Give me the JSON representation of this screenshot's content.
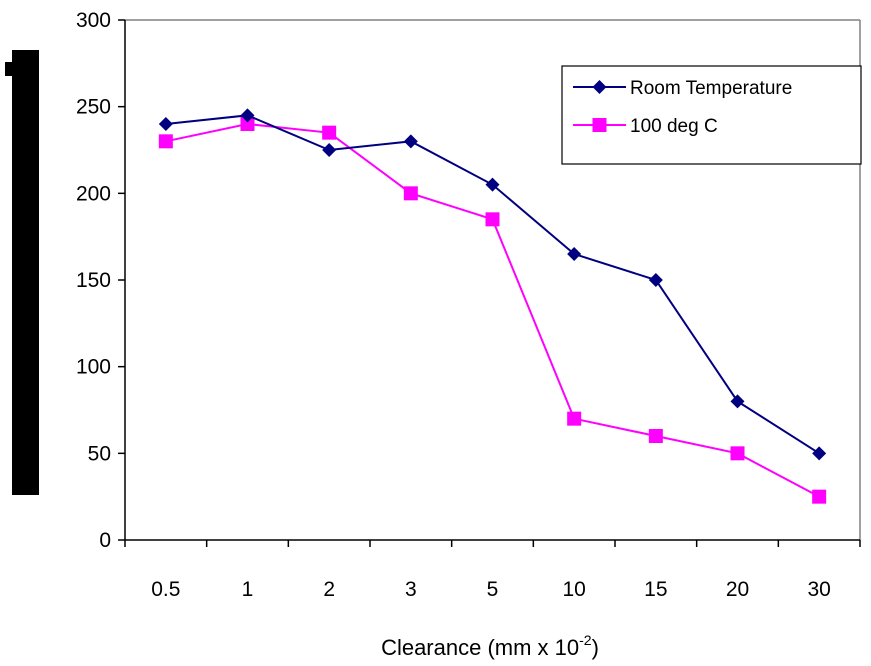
{
  "chart_data": {
    "type": "line",
    "categories": [
      "0.5",
      "1",
      "2",
      "3",
      "5",
      "10",
      "15",
      "20",
      "30"
    ],
    "series": [
      {
        "name": "Room Temperature",
        "values": [
          240,
          245,
          225,
          230,
          205,
          165,
          150,
          80,
          50
        ],
        "color": "#000080",
        "marker": "diamond"
      },
      {
        "name": "100 deg C",
        "values": [
          230,
          240,
          235,
          200,
          185,
          70,
          60,
          50,
          25
        ],
        "color": "#ff00ff",
        "marker": "square"
      }
    ],
    "ylim": [
      0,
      300
    ],
    "yticks": [
      0,
      50,
      100,
      150,
      200,
      250,
      300
    ],
    "xlabel": {
      "text": "Clearance (mm x 10",
      "superscript": "-2",
      "suffix": ")"
    },
    "ylabel": "",
    "legend_position": "top-right",
    "grid": false,
    "plot_border": "top-right light grey lines"
  }
}
